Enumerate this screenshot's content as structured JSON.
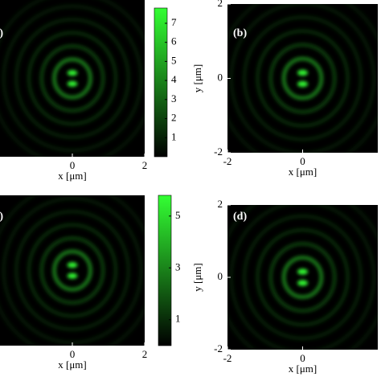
{
  "chart_data": [
    {
      "type": "heatmap",
      "label": "(a)",
      "xlabel": "x [μm]",
      "xlim": [
        -2,
        2
      ],
      "xticks": [
        0,
        2
      ],
      "ylim": [
        -2,
        2
      ],
      "colormap": [
        "#000000",
        "#33ff33"
      ],
      "clim": [
        0,
        7.8
      ],
      "cticks": [
        1,
        2,
        3,
        4,
        5,
        6,
        7
      ]
    },
    {
      "type": "heatmap",
      "label": "(b)",
      "xlabel": "x [μm]",
      "ylabel": "y [μm]",
      "xlim": [
        -2,
        2
      ],
      "xticks": [
        -2,
        0
      ],
      "ylim": [
        -2,
        2
      ],
      "yticks": [
        -2,
        0,
        2
      ],
      "colormap": [
        "#000000",
        "#33ff33"
      ]
    },
    {
      "type": "heatmap",
      "label": "(c)",
      "xlabel": "x [μm]",
      "xlim": [
        -2,
        2
      ],
      "xticks": [
        0,
        2
      ],
      "ylim": [
        -2,
        2
      ],
      "colormap": [
        "#000000",
        "#33ff33"
      ],
      "clim": [
        0,
        5.8
      ],
      "cticks": [
        1,
        3,
        5
      ]
    },
    {
      "type": "heatmap",
      "label": "(d)",
      "xlabel": "x [μm]",
      "ylabel": "y [μm]",
      "xlim": [
        -2,
        2
      ],
      "xticks": [
        -2,
        0
      ],
      "ylim": [
        -2,
        2
      ],
      "yticks": [
        -2,
        0,
        2
      ],
      "colormap": [
        "#000000",
        "#33ff33"
      ]
    }
  ]
}
